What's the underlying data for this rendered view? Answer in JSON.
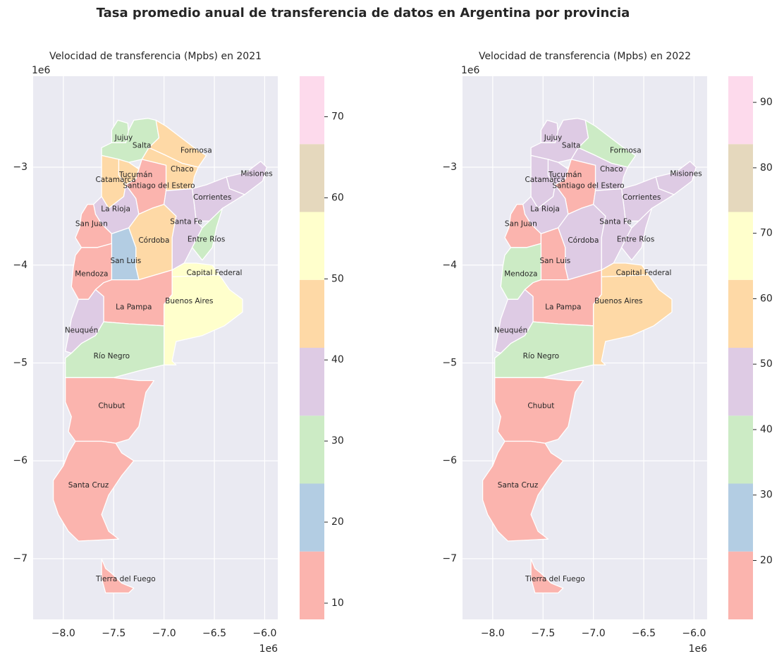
{
  "title": "Tasa promedio anual de transferencia de datos en Argentina por provincia",
  "chart_data": [
    {
      "type": "choropleth",
      "title": "Velocidad de transferencia (Mpbs) en 2021",
      "x_ticks": [
        "−8.0",
        "−7.5",
        "−7.0",
        "−6.5",
        "−6.0"
      ],
      "y_ticks": [
        "−3",
        "−4",
        "−5",
        "−6",
        "−7"
      ],
      "x_offset_label": "1e6",
      "y_offset_label": "1e6",
      "colorbar": {
        "range": [
          8,
          75
        ],
        "ticks": [
          "10",
          "20",
          "30",
          "40",
          "50",
          "60",
          "70"
        ],
        "bins": 8
      },
      "regions": [
        {
          "name": "Jujuy",
          "value": 28
        },
        {
          "name": "Salta",
          "value": 28
        },
        {
          "name": "Formosa",
          "value": 42
        },
        {
          "name": "Chaco",
          "value": 42
        },
        {
          "name": "Misiones",
          "value": 35
        },
        {
          "name": "Tucumán",
          "value": 42
        },
        {
          "name": "Catamarca",
          "value": 42
        },
        {
          "name": "Santiago del Estero",
          "value": 12
        },
        {
          "name": "Corrientes",
          "value": 35
        },
        {
          "name": "La Rioja",
          "value": 35
        },
        {
          "name": "San Juan",
          "value": 12
        },
        {
          "name": "Santa Fe",
          "value": 35
        },
        {
          "name": "Córdoba",
          "value": 42
        },
        {
          "name": "Entre Ríos",
          "value": 28
        },
        {
          "name": "San Luis",
          "value": 19
        },
        {
          "name": "Mendoza",
          "value": 12
        },
        {
          "name": "Capital Federal",
          "value": 57
        },
        {
          "name": "Buenos Aires",
          "value": 57
        },
        {
          "name": "La Pampa",
          "value": 12
        },
        {
          "name": "Neuquén",
          "value": 35
        },
        {
          "name": "Río Negro",
          "value": 28
        },
        {
          "name": "Chubut",
          "value": 12
        },
        {
          "name": "Santa Cruz",
          "value": 12
        },
        {
          "name": "Tierra del Fuego",
          "value": 12
        }
      ]
    },
    {
      "type": "choropleth",
      "title": "Velocidad de transferencia (Mpbs) en 2022",
      "x_ticks": [
        "−8.0",
        "−7.5",
        "−7.0",
        "−6.5",
        "−6.0"
      ],
      "y_ticks": [
        "−3",
        "−4",
        "−5",
        "−6",
        "−7"
      ],
      "x_offset_label": "1e6",
      "y_offset_label": "1e6",
      "colorbar": {
        "range": [
          11,
          94
        ],
        "ticks": [
          "20",
          "30",
          "40",
          "50",
          "60",
          "70",
          "80",
          "90"
        ],
        "bins": 8
      },
      "regions": [
        {
          "name": "Jujuy",
          "value": 45
        },
        {
          "name": "Salta",
          "value": 45
        },
        {
          "name": "Formosa",
          "value": 35
        },
        {
          "name": "Chaco",
          "value": 52
        },
        {
          "name": "Misiones",
          "value": 45
        },
        {
          "name": "Tucumán",
          "value": 52
        },
        {
          "name": "Catamarca",
          "value": 52
        },
        {
          "name": "Santiago del Estero",
          "value": 15
        },
        {
          "name": "Corrientes",
          "value": 45
        },
        {
          "name": "La Rioja",
          "value": 45
        },
        {
          "name": "San Juan",
          "value": 15
        },
        {
          "name": "Santa Fe",
          "value": 52
        },
        {
          "name": "Córdoba",
          "value": 52
        },
        {
          "name": "Entre Ríos",
          "value": 45
        },
        {
          "name": "San Luis",
          "value": 15
        },
        {
          "name": "Mendoza",
          "value": 35
        },
        {
          "name": "Capital Federal",
          "value": 62
        },
        {
          "name": "Buenos Aires",
          "value": 62
        },
        {
          "name": "La Pampa",
          "value": 15
        },
        {
          "name": "Neuquén",
          "value": 45
        },
        {
          "name": "Río Negro",
          "value": 35
        },
        {
          "name": "Chubut",
          "value": 15
        },
        {
          "name": "Santa Cruz",
          "value": 15
        },
        {
          "name": "Tierra del Fuego",
          "value": 15
        }
      ]
    }
  ],
  "colors": {
    "palette": [
      "#fbb4ae",
      "#b3cde3",
      "#ccebc5",
      "#decbe4",
      "#fed9a6",
      "#ffffcc",
      "#e5d8bd",
      "#fddaec",
      "#f2f2f2"
    ],
    "axes_bg": "#eaeaf2",
    "grid": "#ffffff",
    "text": "#262626"
  }
}
